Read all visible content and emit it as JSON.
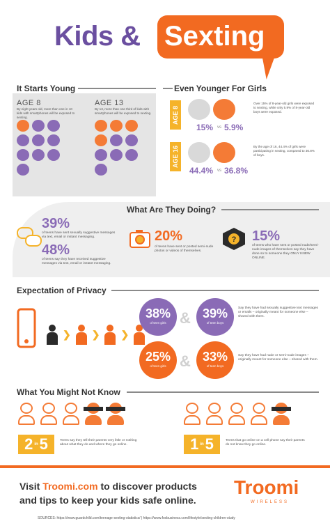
{
  "title": {
    "kids": "Kids &",
    "sexting": "Sexting"
  },
  "young": {
    "heading": "It Starts Young",
    "age8": {
      "label": "AGE 8",
      "desc": "By eight years old, more than one in 10 kids with smartphones will be exposed to sexting."
    },
    "age13": {
      "label": "AGE 13",
      "desc": "By 13, more than one third of kids with smartphones will be exposed to sexting."
    }
  },
  "younger_girls": {
    "heading": "Even Younger For Girls",
    "age8": {
      "tag": "AGE 8",
      "girls": "15%",
      "vs": "vs",
      "boys": "5.9%",
      "desc": "Over 15% of 8-year-old girls were exposed to sexting, while only 5.9% of 8-year-old boys were exposed."
    },
    "age16": {
      "tag": "AGE 16",
      "girls": "44.4%",
      "vs": "vs",
      "boys": "36.8%",
      "desc": "By the age of 16, 44.4% of girls were participating in sexting, compared to 36.8% of boys."
    }
  },
  "doing": {
    "heading": "What Are They Doing?",
    "stat1": {
      "value": "39%",
      "desc": "of teens have sent sexually suggestive messages via text, email or instant messaging."
    },
    "stat2": {
      "value": "48%",
      "desc": "of teens say they have received suggestive messages via text, email or instant messaging."
    },
    "stat3": {
      "value": "20%",
      "desc": "of teens have sent or posted semi-nude photos or videos of themselves."
    },
    "stat4": {
      "value": "15%",
      "desc": "of teens who have sent or posted nude/semi-nude images of themselves say they have done so to someone they ONLY KNEW ONLINE."
    }
  },
  "privacy": {
    "heading": "Expectation of Privacy",
    "c1": {
      "value": "38%",
      "sub": "of teen girls"
    },
    "c2": {
      "value": "39%",
      "sub": "of teen boys"
    },
    "c3": {
      "value": "25%",
      "sub": "of teen girls"
    },
    "c4": {
      "value": "33%",
      "sub": "of teen boys"
    },
    "amp": "&",
    "desc1": "Say they have had sexually suggestive text messages or emails – originally meant for someone else – shared with them.",
    "desc2": "Say they have had nude or semi-nude images – originally meant for someone else – shared with them."
  },
  "notknow": {
    "heading": "What You Might Not Know",
    "r1": {
      "a": "2",
      "in": "in",
      "b": "5",
      "desc": "Teens say they tell their parents very little or nothing about what they do and where they go online."
    },
    "r2": {
      "a": "1",
      "in": "in",
      "b": "5",
      "desc": "Teens that go online on a cell phone say their parents do not know they go online."
    }
  },
  "footer": {
    "line1_pre": "Visit ",
    "line1_link": "Troomi.com",
    "line1_post": " to discover products",
    "line2": "and tips to keep your kids safe online.",
    "brand": "Troomi",
    "brand_sub": "WIRELESS",
    "sources": "SOURCES:  https://www.guardchild.com/teenage-sexting-statistics/  |  https://www.foxbusiness.com/lifestyle/sexting-children-study"
  },
  "colors": {
    "purple": "#8a6bb6",
    "orange": "#f26a21",
    "yellow": "#f5b32a",
    "gray": "#e5e5e5"
  }
}
